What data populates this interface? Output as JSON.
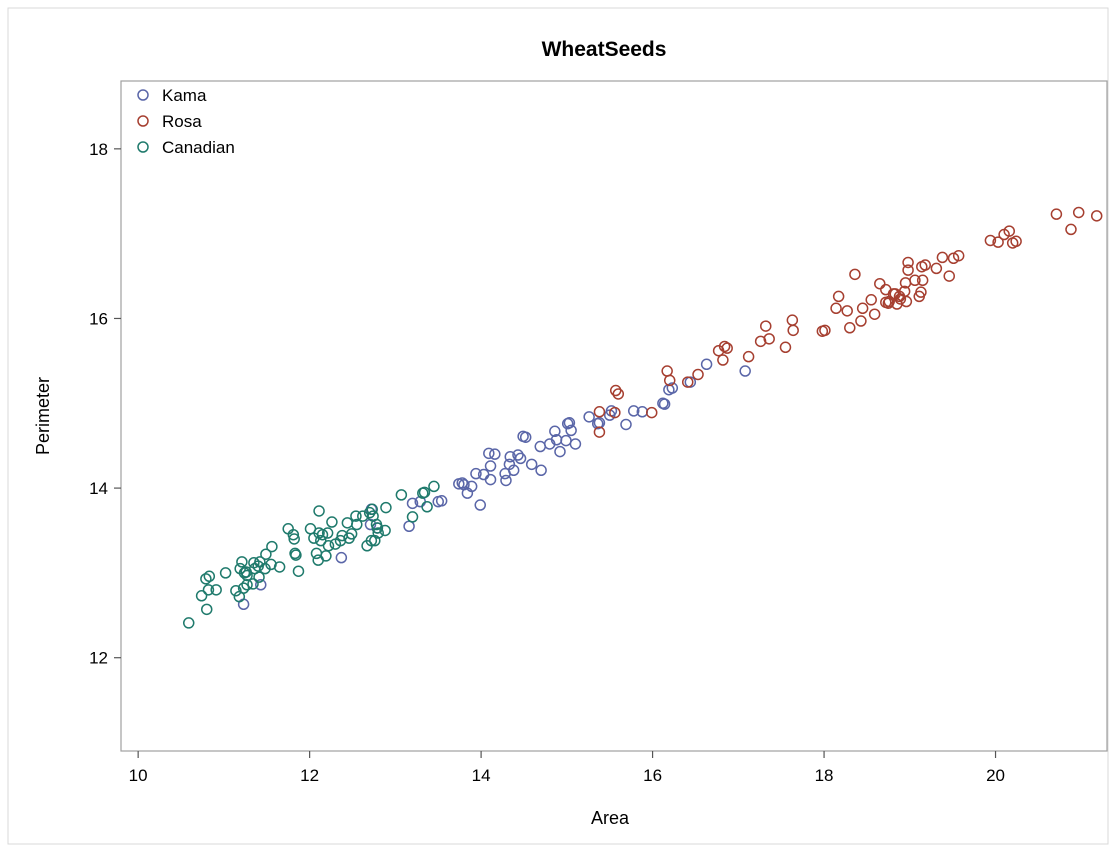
{
  "chart_data": {
    "type": "scatter",
    "title": "WheatSeeds",
    "xlabel": "Area",
    "ylabel": "Perimeter",
    "xlim": [
      9.8,
      21.3
    ],
    "ylim": [
      10.9,
      18.8
    ],
    "x_ticks": [
      10,
      12,
      14,
      16,
      18,
      20
    ],
    "y_ticks": [
      12,
      14,
      16,
      18
    ],
    "grid": false,
    "legend_position": "top-left",
    "marker": "open-circle",
    "series": [
      {
        "name": "Kama",
        "color": "#5a66a8",
        "points": [
          [
            11.23,
            12.63
          ],
          [
            11.43,
            12.86
          ],
          [
            12.37,
            13.18
          ],
          [
            12.71,
            13.57
          ],
          [
            12.72,
            13.75
          ],
          [
            12.79,
            13.53
          ],
          [
            13.16,
            13.55
          ],
          [
            13.2,
            13.82
          ],
          [
            13.29,
            13.84
          ],
          [
            13.5,
            13.84
          ],
          [
            13.54,
            13.85
          ],
          [
            13.74,
            14.05
          ],
          [
            13.78,
            14.06
          ],
          [
            13.8,
            14.04
          ],
          [
            13.84,
            13.94
          ],
          [
            13.89,
            14.02
          ],
          [
            13.94,
            14.17
          ],
          [
            13.99,
            13.8
          ],
          [
            14.03,
            14.16
          ],
          [
            14.09,
            14.41
          ],
          [
            14.11,
            14.1
          ],
          [
            14.11,
            14.26
          ],
          [
            14.16,
            14.4
          ],
          [
            14.28,
            14.17
          ],
          [
            14.29,
            14.09
          ],
          [
            14.33,
            14.28
          ],
          [
            14.34,
            14.37
          ],
          [
            14.38,
            14.21
          ],
          [
            14.43,
            14.39
          ],
          [
            14.46,
            14.35
          ],
          [
            14.49,
            14.61
          ],
          [
            14.52,
            14.6
          ],
          [
            14.59,
            14.28
          ],
          [
            14.69,
            14.49
          ],
          [
            14.7,
            14.21
          ],
          [
            14.8,
            14.52
          ],
          [
            14.86,
            14.67
          ],
          [
            14.88,
            14.57
          ],
          [
            14.92,
            14.43
          ],
          [
            14.99,
            14.56
          ],
          [
            15.01,
            14.76
          ],
          [
            15.03,
            14.77
          ],
          [
            15.05,
            14.68
          ],
          [
            15.1,
            14.52
          ],
          [
            15.26,
            14.84
          ],
          [
            15.36,
            14.76
          ],
          [
            15.38,
            14.77
          ],
          [
            15.5,
            14.86
          ],
          [
            15.52,
            14.91
          ],
          [
            15.69,
            14.75
          ],
          [
            15.78,
            14.91
          ],
          [
            15.88,
            14.9
          ],
          [
            16.12,
            15.0
          ],
          [
            16.14,
            14.99
          ],
          [
            16.19,
            15.16
          ],
          [
            16.23,
            15.18
          ],
          [
            16.44,
            15.25
          ],
          [
            16.63,
            15.46
          ],
          [
            17.08,
            15.38
          ]
        ]
      },
      {
        "name": "Rosa",
        "color": "#a63f30",
        "points": [
          [
            15.38,
            14.9
          ],
          [
            15.38,
            14.66
          ],
          [
            15.56,
            14.89
          ],
          [
            15.57,
            15.15
          ],
          [
            15.6,
            15.11
          ],
          [
            15.99,
            14.89
          ],
          [
            16.17,
            15.38
          ],
          [
            16.2,
            15.27
          ],
          [
            16.41,
            15.25
          ],
          [
            16.53,
            15.34
          ],
          [
            16.77,
            15.62
          ],
          [
            16.82,
            15.51
          ],
          [
            16.84,
            15.67
          ],
          [
            16.87,
            15.65
          ],
          [
            17.12,
            15.55
          ],
          [
            17.26,
            15.73
          ],
          [
            17.32,
            15.91
          ],
          [
            17.36,
            15.76
          ],
          [
            17.55,
            15.66
          ],
          [
            17.63,
            15.98
          ],
          [
            17.64,
            15.86
          ],
          [
            17.98,
            15.85
          ],
          [
            18.01,
            15.86
          ],
          [
            18.14,
            16.12
          ],
          [
            18.17,
            16.26
          ],
          [
            18.27,
            16.09
          ],
          [
            18.3,
            15.89
          ],
          [
            18.36,
            16.52
          ],
          [
            18.43,
            15.97
          ],
          [
            18.45,
            16.12
          ],
          [
            18.55,
            16.22
          ],
          [
            18.59,
            16.05
          ],
          [
            18.65,
            16.41
          ],
          [
            18.72,
            16.19
          ],
          [
            18.72,
            16.34
          ],
          [
            18.75,
            16.18
          ],
          [
            18.76,
            16.2
          ],
          [
            18.81,
            16.29
          ],
          [
            18.83,
            16.29
          ],
          [
            18.85,
            16.17
          ],
          [
            18.88,
            16.26
          ],
          [
            18.89,
            16.23
          ],
          [
            18.94,
            16.32
          ],
          [
            18.95,
            16.42
          ],
          [
            18.96,
            16.2
          ],
          [
            18.98,
            16.57
          ],
          [
            18.98,
            16.66
          ],
          [
            19.06,
            16.45
          ],
          [
            19.11,
            16.26
          ],
          [
            19.13,
            16.31
          ],
          [
            19.14,
            16.61
          ],
          [
            19.15,
            16.45
          ],
          [
            19.18,
            16.63
          ],
          [
            19.31,
            16.59
          ],
          [
            19.38,
            16.72
          ],
          [
            19.46,
            16.5
          ],
          [
            19.51,
            16.71
          ],
          [
            19.57,
            16.74
          ],
          [
            19.94,
            16.92
          ],
          [
            20.03,
            16.9
          ],
          [
            20.1,
            16.99
          ],
          [
            20.16,
            17.03
          ],
          [
            20.2,
            16.89
          ],
          [
            20.24,
            16.91
          ],
          [
            20.71,
            17.23
          ],
          [
            20.88,
            17.05
          ],
          [
            20.97,
            17.25
          ],
          [
            21.18,
            17.21
          ]
        ]
      },
      {
        "name": "Canadian",
        "color": "#1f7a6c",
        "points": [
          [
            10.59,
            12.41
          ],
          [
            10.74,
            12.73
          ],
          [
            10.79,
            12.93
          ],
          [
            10.8,
            12.57
          ],
          [
            10.82,
            12.8
          ],
          [
            10.83,
            12.96
          ],
          [
            10.91,
            12.8
          ],
          [
            11.02,
            13.0
          ],
          [
            11.14,
            12.79
          ],
          [
            11.18,
            12.72
          ],
          [
            11.19,
            13.05
          ],
          [
            11.21,
            13.13
          ],
          [
            11.23,
            12.82
          ],
          [
            11.24,
            13.0
          ],
          [
            11.26,
            13.01
          ],
          [
            11.27,
            12.86
          ],
          [
            11.27,
            12.97
          ],
          [
            11.34,
            12.87
          ],
          [
            11.35,
            13.12
          ],
          [
            11.36,
            13.05
          ],
          [
            11.4,
            13.08
          ],
          [
            11.41,
            12.95
          ],
          [
            11.42,
            13.13
          ],
          [
            11.48,
            13.05
          ],
          [
            11.49,
            13.22
          ],
          [
            11.55,
            13.1
          ],
          [
            11.56,
            13.31
          ],
          [
            11.65,
            13.07
          ],
          [
            11.75,
            13.52
          ],
          [
            11.81,
            13.45
          ],
          [
            11.82,
            13.4
          ],
          [
            11.83,
            13.23
          ],
          [
            11.84,
            13.21
          ],
          [
            11.87,
            13.02
          ],
          [
            12.01,
            13.52
          ],
          [
            12.05,
            13.41
          ],
          [
            12.08,
            13.23
          ],
          [
            12.1,
            13.15
          ],
          [
            12.11,
            13.47
          ],
          [
            12.11,
            13.73
          ],
          [
            12.13,
            13.38
          ],
          [
            12.15,
            13.45
          ],
          [
            12.19,
            13.2
          ],
          [
            12.21,
            13.47
          ],
          [
            12.22,
            13.32
          ],
          [
            12.26,
            13.6
          ],
          [
            12.3,
            13.34
          ],
          [
            12.36,
            13.38
          ],
          [
            12.38,
            13.44
          ],
          [
            12.44,
            13.59
          ],
          [
            12.46,
            13.41
          ],
          [
            12.49,
            13.46
          ],
          [
            12.54,
            13.67
          ],
          [
            12.55,
            13.57
          ],
          [
            12.62,
            13.67
          ],
          [
            12.67,
            13.32
          ],
          [
            12.7,
            13.71
          ],
          [
            12.72,
            13.38
          ],
          [
            12.73,
            13.75
          ],
          [
            12.74,
            13.67
          ],
          [
            12.76,
            13.38
          ],
          [
            12.78,
            13.57
          ],
          [
            12.79,
            13.53
          ],
          [
            12.8,
            13.47
          ],
          [
            12.88,
            13.5
          ],
          [
            12.89,
            13.77
          ],
          [
            13.07,
            13.92
          ],
          [
            13.2,
            13.66
          ],
          [
            13.32,
            13.94
          ],
          [
            13.34,
            13.95
          ],
          [
            13.37,
            13.78
          ],
          [
            13.45,
            14.02
          ]
        ]
      }
    ]
  }
}
